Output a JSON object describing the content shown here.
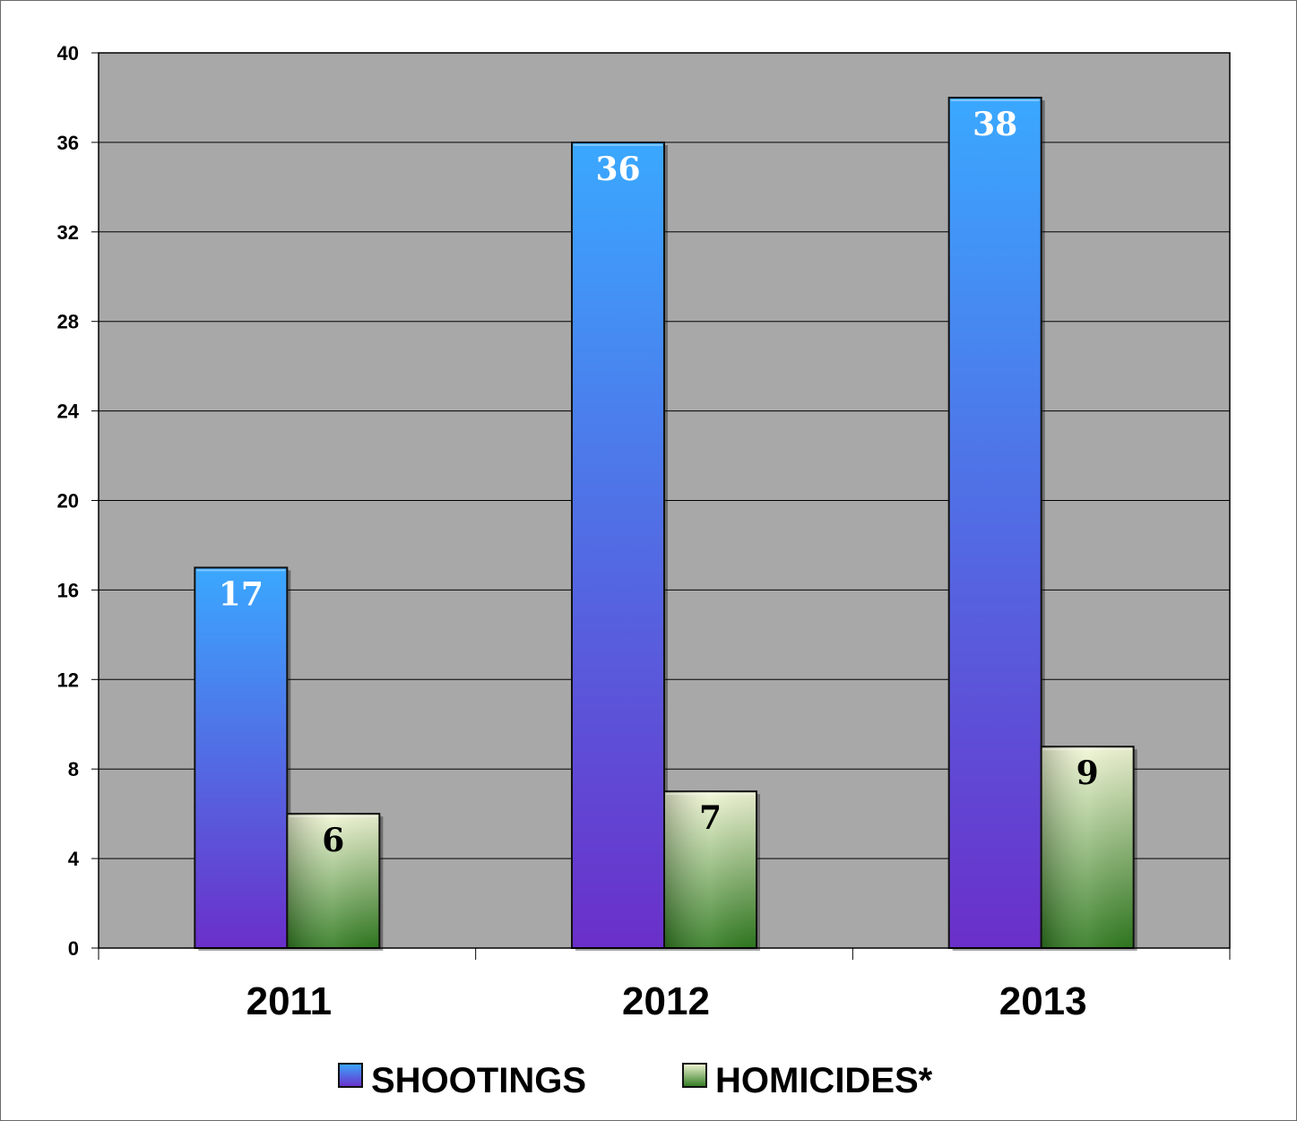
{
  "chart_data": {
    "type": "bar",
    "categories": [
      "2011",
      "2012",
      "2013"
    ],
    "series": [
      {
        "name": "SHOOTINGS",
        "values": [
          17,
          36,
          38
        ],
        "color_top": "#3aa8ff",
        "color_bottom": "#6a2fc9",
        "label_color": "#ffffff"
      },
      {
        "name": "HOMICIDES*",
        "values": [
          6,
          7,
          9
        ],
        "color_top": "#f2f7d6",
        "color_bottom": "#2f7a1f",
        "label_color": "#000000"
      }
    ],
    "ylim": [
      0,
      40
    ],
    "yticks": [
      0,
      4,
      8,
      12,
      16,
      20,
      24,
      28,
      32,
      36,
      40
    ],
    "grid": true,
    "plot_background": "#a8a8a8",
    "legend_position": "bottom",
    "title": "",
    "xlabel": "",
    "ylabel": ""
  }
}
